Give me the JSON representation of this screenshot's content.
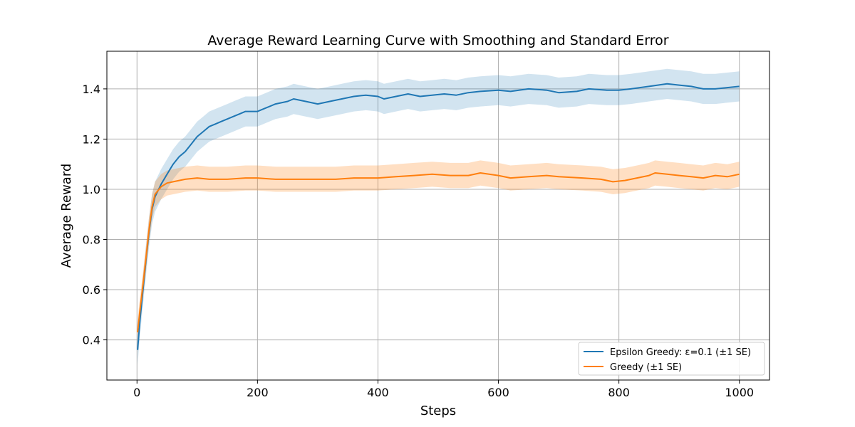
{
  "chart_data": {
    "type": "line",
    "title": "Average Reward Learning Curve with Smoothing and Standard Error",
    "xlabel": "Steps",
    "ylabel": "Average Reward",
    "xlim": [
      -50,
      1050
    ],
    "ylim": [
      0.24,
      1.55
    ],
    "xticks": [
      0,
      200,
      400,
      600,
      800,
      1000
    ],
    "yticks": [
      0.4,
      0.6,
      0.8,
      1.0,
      1.2,
      1.4
    ],
    "xtick_labels": [
      "0",
      "200",
      "400",
      "600",
      "800",
      "1000"
    ],
    "ytick_labels": [
      "0.4",
      "0.6",
      "0.8",
      "1.0",
      "1.2",
      "1.4"
    ],
    "grid": true,
    "legend_position": "bottom-right",
    "series": [
      {
        "name": "Epsilon Greedy: ε=0.1 (±1 SE)",
        "color": "#1f77b4",
        "band_color": "#1f77b4",
        "band_opacity": 0.2,
        "se": 0.06,
        "points": [
          [
            1,
            0.36
          ],
          [
            5,
            0.48
          ],
          [
            10,
            0.6
          ],
          [
            15,
            0.72
          ],
          [
            20,
            0.83
          ],
          [
            25,
            0.92
          ],
          [
            30,
            0.97
          ],
          [
            40,
            1.02
          ],
          [
            50,
            1.06
          ],
          [
            60,
            1.1
          ],
          [
            70,
            1.13
          ],
          [
            80,
            1.15
          ],
          [
            90,
            1.18
          ],
          [
            100,
            1.21
          ],
          [
            110,
            1.23
          ],
          [
            120,
            1.25
          ],
          [
            130,
            1.26
          ],
          [
            140,
            1.27
          ],
          [
            150,
            1.28
          ],
          [
            160,
            1.29
          ],
          [
            170,
            1.3
          ],
          [
            180,
            1.31
          ],
          [
            200,
            1.31
          ],
          [
            210,
            1.32
          ],
          [
            230,
            1.34
          ],
          [
            250,
            1.35
          ],
          [
            260,
            1.36
          ],
          [
            280,
            1.35
          ],
          [
            300,
            1.34
          ],
          [
            320,
            1.35
          ],
          [
            340,
            1.36
          ],
          [
            360,
            1.37
          ],
          [
            380,
            1.375
          ],
          [
            400,
            1.37
          ],
          [
            410,
            1.36
          ],
          [
            430,
            1.37
          ],
          [
            450,
            1.38
          ],
          [
            470,
            1.37
          ],
          [
            490,
            1.375
          ],
          [
            510,
            1.38
          ],
          [
            530,
            1.375
          ],
          [
            550,
            1.385
          ],
          [
            570,
            1.39
          ],
          [
            600,
            1.395
          ],
          [
            620,
            1.39
          ],
          [
            650,
            1.4
          ],
          [
            680,
            1.395
          ],
          [
            700,
            1.385
          ],
          [
            730,
            1.39
          ],
          [
            750,
            1.4
          ],
          [
            780,
            1.395
          ],
          [
            800,
            1.395
          ],
          [
            820,
            1.4
          ],
          [
            850,
            1.41
          ],
          [
            880,
            1.42
          ],
          [
            900,
            1.415
          ],
          [
            920,
            1.41
          ],
          [
            940,
            1.4
          ],
          [
            960,
            1.4
          ],
          [
            980,
            1.405
          ],
          [
            1000,
            1.41
          ]
        ]
      },
      {
        "name": "Greedy (±1 SE)",
        "color": "#ff7f0e",
        "band_color": "#ff7f0e",
        "band_opacity": 0.25,
        "se": 0.05,
        "points": [
          [
            1,
            0.43
          ],
          [
            5,
            0.52
          ],
          [
            10,
            0.62
          ],
          [
            15,
            0.73
          ],
          [
            20,
            0.84
          ],
          [
            25,
            0.93
          ],
          [
            30,
            0.98
          ],
          [
            40,
            1.01
          ],
          [
            50,
            1.025
          ],
          [
            60,
            1.03
          ],
          [
            70,
            1.035
          ],
          [
            80,
            1.04
          ],
          [
            100,
            1.045
          ],
          [
            120,
            1.04
          ],
          [
            150,
            1.04
          ],
          [
            180,
            1.045
          ],
          [
            200,
            1.045
          ],
          [
            230,
            1.04
          ],
          [
            260,
            1.04
          ],
          [
            300,
            1.04
          ],
          [
            330,
            1.04
          ],
          [
            360,
            1.045
          ],
          [
            400,
            1.045
          ],
          [
            430,
            1.05
          ],
          [
            460,
            1.055
          ],
          [
            490,
            1.06
          ],
          [
            520,
            1.055
          ],
          [
            550,
            1.055
          ],
          [
            570,
            1.065
          ],
          [
            600,
            1.055
          ],
          [
            620,
            1.045
          ],
          [
            650,
            1.05
          ],
          [
            680,
            1.055
          ],
          [
            700,
            1.05
          ],
          [
            740,
            1.045
          ],
          [
            770,
            1.04
          ],
          [
            790,
            1.03
          ],
          [
            810,
            1.035
          ],
          [
            830,
            1.045
          ],
          [
            850,
            1.055
          ],
          [
            860,
            1.065
          ],
          [
            880,
            1.06
          ],
          [
            900,
            1.055
          ],
          [
            920,
            1.05
          ],
          [
            940,
            1.045
          ],
          [
            960,
            1.055
          ],
          [
            980,
            1.05
          ],
          [
            1000,
            1.06
          ]
        ]
      }
    ]
  }
}
